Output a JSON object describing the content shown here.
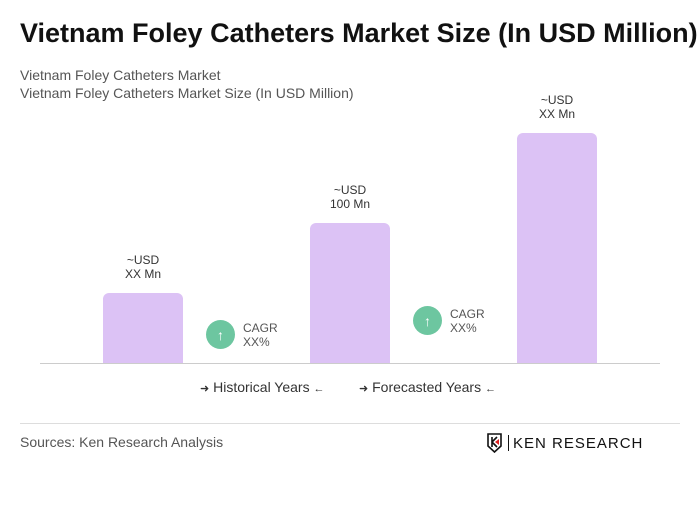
{
  "title": "Vietnam Foley Catheters Market Size (In USD Million)",
  "subtitle1": "Vietnam Foley Catheters Market",
  "subtitle2": "Vietnam Foley Catheters Market Size (In USD Million)",
  "chart_data": {
    "type": "bar",
    "categories": [
      "",
      "",
      ""
    ],
    "values": [
      null,
      100,
      null
    ],
    "data_labels": [
      [
        "~USD",
        "XX Mn"
      ],
      [
        "~USD",
        "100 Mn"
      ],
      [
        "~USD",
        "XX Mn"
      ]
    ],
    "cagr": [
      {
        "label": "CAGR",
        "value": "XX%"
      },
      {
        "label": "CAGR",
        "value": "XX%"
      }
    ],
    "legend": [
      "Historical Years",
      "Forecasted Years"
    ],
    "bar_color": "#dcc2f5",
    "cagr_color": "#6dc6a0"
  },
  "sources": "Sources: Ken Research Analysis",
  "logo": "KEN RESEARCH"
}
